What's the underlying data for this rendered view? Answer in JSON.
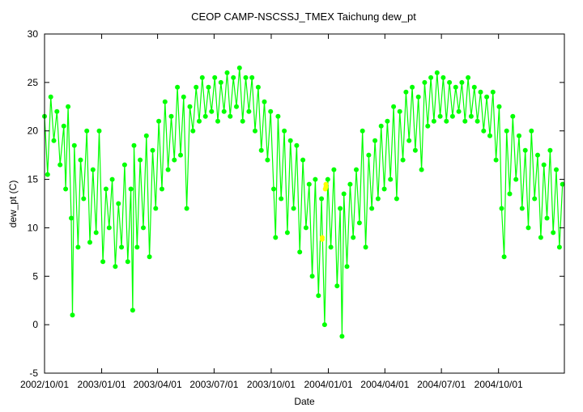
{
  "chart_data": {
    "type": "scatter",
    "title": "CEOP CAMP-NSCSSJ_TMEX Taichung  dew_pt",
    "xlabel": "Date",
    "ylabel": "dew_pt (C)",
    "ylim": [
      -5,
      30
    ],
    "xlim": [
      "2002/10/01",
      "2005/01/15"
    ],
    "yticks": [
      -5,
      0,
      5,
      10,
      15,
      20,
      25,
      30
    ],
    "xticks": [
      {
        "date": "2002/10/01",
        "label": "2002/10/01"
      },
      {
        "date": "2003/01/01",
        "label": "2003/01/01"
      },
      {
        "date": "2003/04/01",
        "label": "2003/04/01"
      },
      {
        "date": "2003/07/01",
        "label": "2003/07/01"
      },
      {
        "date": "2003/10/01",
        "label": "2003/10/01"
      },
      {
        "date": "2004/01/01",
        "label": "2004/01/01"
      },
      {
        "date": "2004/04/01",
        "label": "2004/04/01"
      },
      {
        "date": "2004/07/01",
        "label": "2004/07/01"
      },
      {
        "date": "2004/10/01",
        "label": "2004/10/01"
      }
    ],
    "grid": false,
    "series": [
      {
        "color": "#00ff00",
        "marker": "circle",
        "connected": true,
        "points": [
          [
            "2002/10/01",
            21.5
          ],
          [
            "2002/10/06",
            15.5
          ],
          [
            "2002/10/11",
            23.5
          ],
          [
            "2002/10/16",
            19.0
          ],
          [
            "2002/10/21",
            22.0
          ],
          [
            "2002/10/26",
            16.5
          ],
          [
            "2002/11/01",
            20.5
          ],
          [
            "2002/11/04",
            14.0
          ],
          [
            "2002/11/08",
            22.5
          ],
          [
            "2002/11/13",
            11.0
          ],
          [
            "2002/11/15",
            1.0
          ],
          [
            "2002/11/18",
            18.5
          ],
          [
            "2002/11/24",
            8.0
          ],
          [
            "2002/11/28",
            17.0
          ],
          [
            "2002/12/03",
            13.0
          ],
          [
            "2002/12/08",
            20.0
          ],
          [
            "2002/12/13",
            8.5
          ],
          [
            "2002/12/18",
            16.0
          ],
          [
            "2002/12/23",
            9.5
          ],
          [
            "2002/12/28",
            20.0
          ],
          [
            "2003/01/03",
            6.5
          ],
          [
            "2003/01/08",
            14.0
          ],
          [
            "2003/01/13",
            10.0
          ],
          [
            "2003/01/18",
            15.0
          ],
          [
            "2003/01/23",
            6.0
          ],
          [
            "2003/01/28",
            12.5
          ],
          [
            "2003/02/02",
            8.0
          ],
          [
            "2003/02/07",
            16.5
          ],
          [
            "2003/02/12",
            6.5
          ],
          [
            "2003/02/17",
            14.0
          ],
          [
            "2003/02/20",
            1.5
          ],
          [
            "2003/02/22",
            18.5
          ],
          [
            "2003/02/27",
            8.0
          ],
          [
            "2003/03/04",
            17.0
          ],
          [
            "2003/03/09",
            10.0
          ],
          [
            "2003/03/14",
            19.5
          ],
          [
            "2003/03/19",
            7.0
          ],
          [
            "2003/03/24",
            18.0
          ],
          [
            "2003/03/29",
            12.0
          ],
          [
            "2003/04/03",
            21.0
          ],
          [
            "2003/04/08",
            14.0
          ],
          [
            "2003/04/13",
            23.0
          ],
          [
            "2003/04/18",
            16.0
          ],
          [
            "2003/04/23",
            21.5
          ],
          [
            "2003/04/28",
            17.0
          ],
          [
            "2003/05/03",
            24.5
          ],
          [
            "2003/05/08",
            17.5
          ],
          [
            "2003/05/13",
            23.5
          ],
          [
            "2003/05/18",
            12.0
          ],
          [
            "2003/05/23",
            22.5
          ],
          [
            "2003/05/28",
            20.0
          ],
          [
            "2003/06/02",
            24.5
          ],
          [
            "2003/06/07",
            21.0
          ],
          [
            "2003/06/12",
            25.5
          ],
          [
            "2003/06/17",
            21.5
          ],
          [
            "2003/06/22",
            24.5
          ],
          [
            "2003/06/27",
            22.0
          ],
          [
            "2003/07/02",
            25.5
          ],
          [
            "2003/07/07",
            21.0
          ],
          [
            "2003/07/12",
            25.0
          ],
          [
            "2003/07/17",
            22.0
          ],
          [
            "2003/07/22",
            26.0
          ],
          [
            "2003/07/27",
            21.5
          ],
          [
            "2003/08/01",
            25.5
          ],
          [
            "2003/08/06",
            22.5
          ],
          [
            "2003/08/11",
            26.5
          ],
          [
            "2003/08/16",
            21.0
          ],
          [
            "2003/08/21",
            25.5
          ],
          [
            "2003/08/26",
            22.0
          ],
          [
            "2003/08/31",
            25.5
          ],
          [
            "2003/09/05",
            20.0
          ],
          [
            "2003/09/10",
            24.5
          ],
          [
            "2003/09/15",
            18.0
          ],
          [
            "2003/09/20",
            23.0
          ],
          [
            "2003/09/25",
            17.0
          ],
          [
            "2003/09/30",
            22.0
          ],
          [
            "2003/10/05",
            14.0
          ],
          [
            "2003/10/08",
            9.0
          ],
          [
            "2003/10/12",
            21.5
          ],
          [
            "2003/10/17",
            13.0
          ],
          [
            "2003/10/22",
            20.0
          ],
          [
            "2003/10/27",
            9.5
          ],
          [
            "2003/11/01",
            19.0
          ],
          [
            "2003/11/06",
            12.0
          ],
          [
            "2003/11/11",
            18.5
          ],
          [
            "2003/11/16",
            7.5
          ],
          [
            "2003/11/21",
            17.0
          ],
          [
            "2003/11/26",
            10.0
          ],
          [
            "2003/12/01",
            14.5
          ],
          [
            "2003/12/06",
            5.0
          ],
          [
            "2003/12/11",
            15.0
          ],
          [
            "2003/12/16",
            3.0
          ],
          [
            "2003/12/21",
            13.0
          ],
          [
            "2003/12/26",
            0.0
          ],
          [
            "2003/12/31",
            15.0
          ],
          [
            "2004/01/05",
            8.0
          ],
          [
            "2004/01/10",
            16.0
          ],
          [
            "2004/01/15",
            4.0
          ],
          [
            "2004/01/20",
            12.0
          ],
          [
            "2004/01/23",
            -1.2
          ],
          [
            "2004/01/26",
            13.5
          ],
          [
            "2004/01/31",
            6.0
          ],
          [
            "2004/02/05",
            14.5
          ],
          [
            "2004/02/10",
            9.0
          ],
          [
            "2004/02/15",
            16.0
          ],
          [
            "2004/02/20",
            10.5
          ],
          [
            "2004/02/25",
            20.0
          ],
          [
            "2004/03/01",
            8.0
          ],
          [
            "2004/03/06",
            17.5
          ],
          [
            "2004/03/11",
            12.0
          ],
          [
            "2004/03/16",
            19.0
          ],
          [
            "2004/03/21",
            13.0
          ],
          [
            "2004/03/26",
            20.5
          ],
          [
            "2004/03/31",
            14.0
          ],
          [
            "2004/04/05",
            21.0
          ],
          [
            "2004/04/10",
            15.0
          ],
          [
            "2004/04/15",
            22.5
          ],
          [
            "2004/04/20",
            13.0
          ],
          [
            "2004/04/25",
            22.0
          ],
          [
            "2004/04/30",
            17.0
          ],
          [
            "2004/05/05",
            24.0
          ],
          [
            "2004/05/10",
            19.0
          ],
          [
            "2004/05/15",
            24.5
          ],
          [
            "2004/05/20",
            18.0
          ],
          [
            "2004/05/25",
            23.5
          ],
          [
            "2004/05/30",
            16.0
          ],
          [
            "2004/06/04",
            25.0
          ],
          [
            "2004/06/09",
            20.5
          ],
          [
            "2004/06/14",
            25.5
          ],
          [
            "2004/06/19",
            21.0
          ],
          [
            "2004/06/24",
            26.0
          ],
          [
            "2004/06/29",
            21.5
          ],
          [
            "2004/07/04",
            25.5
          ],
          [
            "2004/07/09",
            21.0
          ],
          [
            "2004/07/14",
            25.0
          ],
          [
            "2004/07/19",
            21.5
          ],
          [
            "2004/07/24",
            24.5
          ],
          [
            "2004/07/29",
            22.0
          ],
          [
            "2004/08/03",
            25.0
          ],
          [
            "2004/08/08",
            21.0
          ],
          [
            "2004/08/13",
            25.5
          ],
          [
            "2004/08/18",
            21.5
          ],
          [
            "2004/08/23",
            24.5
          ],
          [
            "2004/08/28",
            21.0
          ],
          [
            "2004/09/02",
            24.0
          ],
          [
            "2004/09/07",
            20.0
          ],
          [
            "2004/09/12",
            23.5
          ],
          [
            "2004/09/17",
            19.5
          ],
          [
            "2004/09/22",
            24.0
          ],
          [
            "2004/09/27",
            17.0
          ],
          [
            "2004/10/02",
            22.5
          ],
          [
            "2004/10/06",
            12.0
          ],
          [
            "2004/10/10",
            7.0
          ],
          [
            "2004/10/14",
            20.0
          ],
          [
            "2004/10/19",
            13.5
          ],
          [
            "2004/10/24",
            21.5
          ],
          [
            "2004/10/29",
            15.0
          ],
          [
            "2004/11/03",
            19.5
          ],
          [
            "2004/11/08",
            12.0
          ],
          [
            "2004/11/13",
            18.0
          ],
          [
            "2004/11/18",
            10.0
          ],
          [
            "2004/11/23",
            20.0
          ],
          [
            "2004/11/28",
            13.0
          ],
          [
            "2004/12/03",
            17.5
          ],
          [
            "2004/12/08",
            9.0
          ],
          [
            "2004/12/13",
            16.5
          ],
          [
            "2004/12/18",
            11.0
          ],
          [
            "2004/12/23",
            18.0
          ],
          [
            "2004/12/28",
            9.5
          ],
          [
            "2005/01/02",
            16.0
          ],
          [
            "2005/01/07",
            8.0
          ],
          [
            "2005/01/12",
            14.5
          ]
        ]
      },
      {
        "color": "#ffff00",
        "marker": "circle",
        "connected": false,
        "points": [
          [
            "2003/12/28",
            14.2
          ],
          [
            "2003/12/28",
            14.5
          ],
          [
            "2003/12/27",
            14.0
          ],
          [
            "2003/12/22",
            9.0
          ],
          [
            "2003/12/22",
            8.8
          ]
        ]
      }
    ]
  }
}
